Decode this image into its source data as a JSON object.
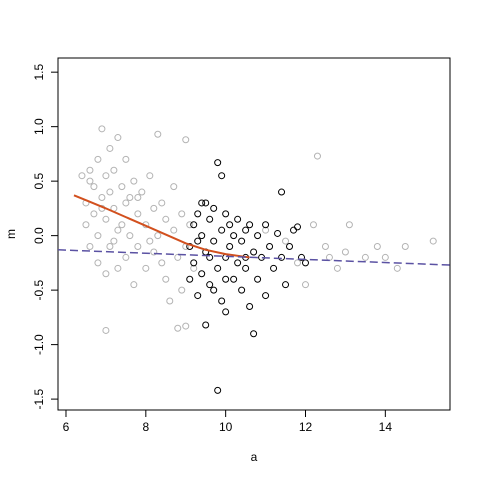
{
  "chart_data": {
    "type": "scatter",
    "xlabel": "a",
    "ylabel": "m",
    "xlim": [
      5.8,
      15.62
    ],
    "ylim": [
      -1.6,
      1.63
    ],
    "xticks": [
      6,
      8,
      10,
      12,
      14
    ],
    "yticks": [
      -1.5,
      {
        "value": -1,
        "label": "-1.0"
      },
      -0.5,
      {
        "value": 0,
        "label": "0.0"
      },
      0.5,
      {
        "value": 1,
        "label": "1.0"
      },
      1.5
    ],
    "series": [
      {
        "color": "#b3b3b3",
        "x": [
          6.4,
          6.5,
          6.5,
          6.6,
          6.6,
          6.7,
          6.7,
          6.8,
          6.8,
          6.8,
          6.9,
          6.9,
          7.0,
          7.0,
          7.0,
          7.0,
          7.1,
          7.1,
          7.1,
          7.2,
          7.2,
          7.3,
          7.3,
          7.3,
          7.4,
          7.4,
          7.5,
          7.5,
          7.6,
          7.6,
          7.7,
          7.7,
          7.8,
          7.8,
          7.9,
          8.0,
          8.0,
          8.1,
          8.2,
          8.2,
          8.3,
          8.3,
          8.4,
          8.5,
          8.5,
          8.6,
          8.7,
          8.7,
          8.8,
          8.8,
          8.9,
          9.0,
          9.0,
          9.0,
          9.1,
          9.2,
          6.6,
          6.9,
          7.2,
          7.5,
          7.8,
          8.1,
          8.4,
          8.9,
          11.0,
          11.5,
          12.3,
          12.2,
          12.5,
          12.8,
          13.0,
          13.1,
          13.5,
          13.8,
          14.0,
          14.3,
          14.5,
          15.2,
          12.0,
          11.8,
          12.6
        ],
        "y": [
          0.55,
          0.3,
          0.1,
          -0.1,
          0.6,
          0.45,
          0.2,
          0.7,
          0.0,
          -0.25,
          0.98,
          0.35,
          0.55,
          0.15,
          -0.35,
          -0.87,
          0.8,
          0.4,
          -0.1,
          0.6,
          0.25,
          0.9,
          0.05,
          -0.3,
          0.45,
          0.1,
          0.7,
          -0.2,
          0.35,
          0.0,
          0.5,
          -0.45,
          0.2,
          -0.1,
          0.4,
          0.1,
          -0.3,
          0.55,
          0.25,
          -0.15,
          0.93,
          0.0,
          0.3,
          -0.4,
          0.15,
          -0.6,
          0.05,
          0.45,
          -0.85,
          -0.2,
          0.2,
          0.88,
          -0.1,
          -0.83,
          0.1,
          -0.3,
          0.5,
          0.25,
          -0.05,
          0.3,
          0.35,
          -0.05,
          -0.25,
          -0.5,
          0.05,
          -0.05,
          0.73,
          0.1,
          -0.1,
          -0.3,
          -0.15,
          0.1,
          -0.2,
          -0.1,
          -0.2,
          -0.3,
          -0.1,
          -0.05,
          -0.45,
          -0.25,
          -0.2
        ]
      },
      {
        "color": "#000000",
        "x": [
          9.1,
          9.1,
          9.2,
          9.2,
          9.3,
          9.3,
          9.4,
          9.4,
          9.5,
          9.5,
          9.5,
          9.6,
          9.6,
          9.7,
          9.7,
          9.8,
          9.8,
          9.8,
          9.9,
          9.9,
          9.9,
          10.0,
          10.0,
          10.0,
          10.1,
          10.1,
          10.2,
          10.2,
          10.3,
          10.3,
          10.4,
          10.4,
          10.5,
          10.5,
          10.6,
          10.6,
          10.7,
          10.7,
          10.8,
          10.8,
          10.9,
          11.0,
          11.0,
          11.1,
          11.2,
          11.3,
          11.4,
          11.4,
          11.5,
          11.6,
          11.7,
          11.8,
          11.9,
          12.0,
          9.3,
          9.6,
          10.0,
          10.5,
          9.4,
          9.7
        ],
        "y": [
          -0.1,
          -0.4,
          0.1,
          -0.25,
          0.2,
          -0.55,
          0.0,
          -0.35,
          0.3,
          -0.15,
          -0.82,
          0.15,
          -0.45,
          -0.05,
          0.25,
          0.67,
          -0.3,
          -1.42,
          0.55,
          -0.6,
          0.05,
          -0.2,
          0.2,
          -0.7,
          -0.1,
          0.1,
          -0.4,
          0.0,
          -0.25,
          0.15,
          -0.5,
          -0.05,
          0.05,
          -0.3,
          -0.65,
          0.1,
          -0.9,
          -0.15,
          0.0,
          -0.4,
          -0.2,
          0.1,
          -0.55,
          -0.1,
          -0.3,
          0.02,
          0.4,
          -0.2,
          -0.45,
          -0.1,
          0.05,
          0.08,
          -0.2,
          -0.25,
          -0.05,
          -0.2,
          -0.4,
          -0.2,
          0.3,
          -0.5
        ]
      }
    ],
    "lines": [
      {
        "color": "#d2501e",
        "style": "solid",
        "x": [
          6.2,
          6.6,
          7.0,
          7.5,
          8.0,
          8.5,
          9.0,
          9.5,
          10.0,
          10.6
        ],
        "y": [
          0.37,
          0.31,
          0.25,
          0.17,
          0.09,
          0.01,
          -0.07,
          -0.13,
          -0.17,
          -0.2
        ]
      },
      {
        "color": "#5b52a3",
        "style": "dashed",
        "x": [
          5.8,
          15.62
        ],
        "y": [
          -0.13,
          -0.27
        ]
      }
    ]
  }
}
